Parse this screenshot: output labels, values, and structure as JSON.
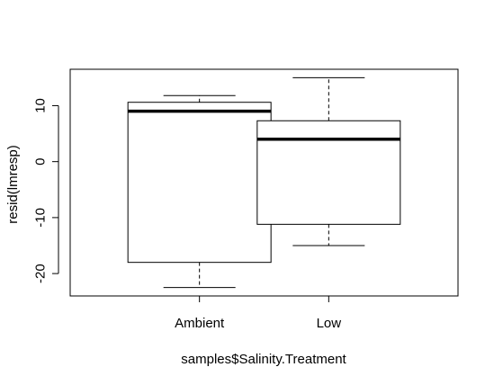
{
  "chart_data": {
    "type": "boxplot",
    "title": "",
    "xlabel": "samples$Salinity.Treatment",
    "ylabel": "resid(lmresp)",
    "ylim": [
      -24,
      16.5
    ],
    "yticks": [
      -20,
      -10,
      0,
      10
    ],
    "ytick_labels": [
      "-20",
      "-10",
      "0",
      "10"
    ],
    "grid": false,
    "categories": [
      "Ambient",
      "Low"
    ],
    "boxes": [
      {
        "category": "Ambient",
        "min": -22.5,
        "q1": -18,
        "median": 9,
        "q3": 10.6,
        "max": 11.8
      },
      {
        "category": "Low",
        "min": -15,
        "q1": -11.2,
        "median": 4,
        "q3": 7.3,
        "max": 15
      }
    ]
  }
}
